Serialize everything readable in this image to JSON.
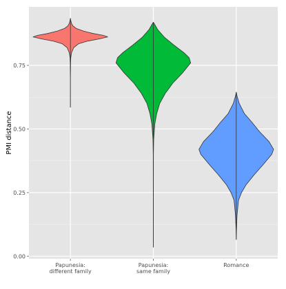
{
  "chart_data": {
    "type": "violin",
    "title": "",
    "xlabel": "",
    "ylabel": "PMI distance",
    "ylim": [
      -0.01,
      0.98
    ],
    "yticks": [
      {
        "value": 0.0,
        "label": "0.00"
      },
      {
        "value": 0.25,
        "label": "0.25"
      },
      {
        "value": 0.5,
        "label": "0.50"
      },
      {
        "value": 0.75,
        "label": "0.75"
      }
    ],
    "grid": true,
    "legend": "none",
    "categories": [
      {
        "label": [
          "Papunesia:",
          "different family"
        ],
        "color": "#F8766D"
      },
      {
        "label": [
          "Papunesia:",
          "same family"
        ],
        "color": "#00BA38"
      },
      {
        "label": [
          "Romance"
        ],
        "color": "#619CFF"
      }
    ],
    "violins": [
      {
        "category": 0,
        "min": 0.585,
        "max": 0.935,
        "profile": [
          [
            0.585,
            0.0
          ],
          [
            0.7,
            0.0
          ],
          [
            0.76,
            0.005
          ],
          [
            0.78,
            0.01
          ],
          [
            0.8,
            0.03
          ],
          [
            0.82,
            0.09
          ],
          [
            0.835,
            0.22
          ],
          [
            0.845,
            0.45
          ],
          [
            0.855,
            0.8
          ],
          [
            0.862,
            1.0
          ],
          [
            0.868,
            0.88
          ],
          [
            0.875,
            0.62
          ],
          [
            0.885,
            0.35
          ],
          [
            0.895,
            0.16
          ],
          [
            0.905,
            0.07
          ],
          [
            0.915,
            0.03
          ],
          [
            0.925,
            0.012
          ],
          [
            0.935,
            0.0
          ]
        ]
      },
      {
        "category": 1,
        "min": 0.035,
        "max": 0.92,
        "profile": [
          [
            0.035,
            0.0
          ],
          [
            0.4,
            0.003
          ],
          [
            0.46,
            0.01
          ],
          [
            0.52,
            0.04
          ],
          [
            0.56,
            0.09
          ],
          [
            0.6,
            0.17
          ],
          [
            0.64,
            0.32
          ],
          [
            0.68,
            0.52
          ],
          [
            0.72,
            0.78
          ],
          [
            0.76,
            1.0
          ],
          [
            0.78,
            0.96
          ],
          [
            0.8,
            0.82
          ],
          [
            0.83,
            0.55
          ],
          [
            0.86,
            0.3
          ],
          [
            0.89,
            0.12
          ],
          [
            0.91,
            0.04
          ],
          [
            0.92,
            0.0
          ]
        ]
      },
      {
        "category": 2,
        "min": 0.065,
        "max": 0.645,
        "profile": [
          [
            0.065,
            0.0
          ],
          [
            0.1,
            0.005
          ],
          [
            0.16,
            0.02
          ],
          [
            0.22,
            0.06
          ],
          [
            0.25,
            0.14
          ],
          [
            0.28,
            0.26
          ],
          [
            0.32,
            0.48
          ],
          [
            0.36,
            0.72
          ],
          [
            0.4,
            0.95
          ],
          [
            0.42,
            1.0
          ],
          [
            0.45,
            0.88
          ],
          [
            0.49,
            0.62
          ],
          [
            0.53,
            0.4
          ],
          [
            0.56,
            0.22
          ],
          [
            0.6,
            0.08
          ],
          [
            0.63,
            0.02
          ],
          [
            0.645,
            0.0
          ]
        ]
      }
    ]
  }
}
